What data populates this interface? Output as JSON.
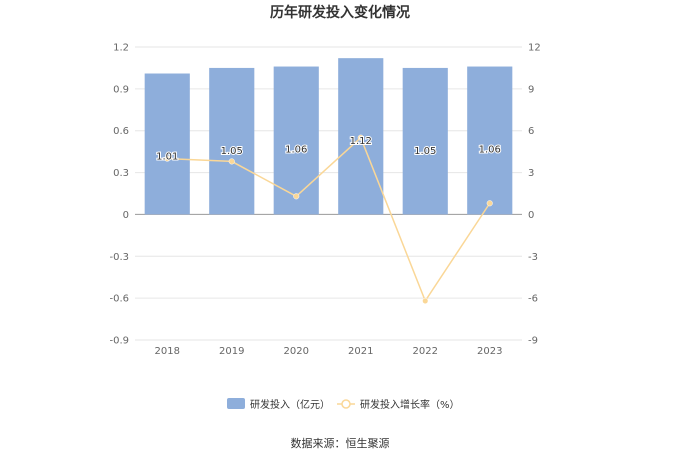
{
  "chart_data": {
    "type": "bar",
    "title": "历年研发投入变化情况",
    "categories": [
      "2018",
      "2019",
      "2020",
      "2021",
      "2022",
      "2023"
    ],
    "series": [
      {
        "name": "研发投入（亿元）",
        "type": "bar",
        "axis": "left",
        "color": "#8eaedb",
        "values": [
          1.01,
          1.05,
          1.06,
          1.12,
          1.05,
          1.06
        ],
        "labels": [
          "1.01",
          "1.05",
          "1.06",
          "1.12",
          "1.05",
          "1.06"
        ]
      },
      {
        "name": "研发投入增长率（%）",
        "type": "line",
        "axis": "right",
        "color": "#fad797",
        "values": [
          4.0,
          3.8,
          1.3,
          5.5,
          -6.2,
          0.8
        ]
      }
    ],
    "y_left": {
      "min": -0.9,
      "max": 1.2,
      "ticks": [
        "1.2",
        "0.9",
        "0.6",
        "0.3",
        "0",
        "-0.3",
        "-0.6",
        "-0.9"
      ]
    },
    "y_right": {
      "min": -9,
      "max": 12,
      "ticks": [
        "12",
        "9",
        "6",
        "3",
        "0",
        "-3",
        "-6",
        "-9"
      ]
    },
    "grid": true,
    "legend_position": "bottom"
  },
  "source_text": "数据来源：恒生聚源"
}
